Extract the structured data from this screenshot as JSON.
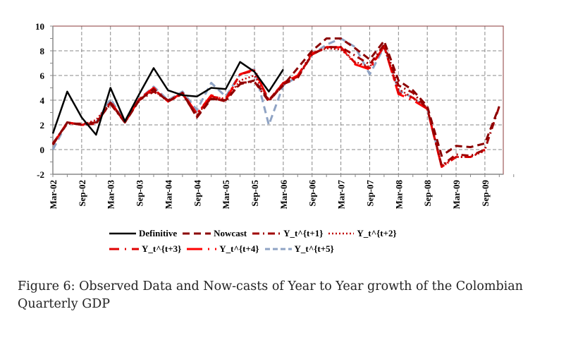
{
  "caption": "Figure 6:  Observed Data and Now-casts of Year to Year growth of the Colombian Quarterly GDP",
  "chart_data": {
    "type": "line",
    "title": "",
    "xlabel": "",
    "ylabel": "",
    "ylim": [
      -2,
      10
    ],
    "yticks": [
      -2,
      0,
      2,
      4,
      6,
      8,
      10
    ],
    "grid": true,
    "legend_position": "bottom",
    "x": [
      "Mar-02",
      "Jun-02",
      "Sep-02",
      "Dec-02",
      "Mar-03",
      "Jun-03",
      "Sep-03",
      "Dec-03",
      "Mar-04",
      "Jun-04",
      "Sep-04",
      "Dec-04",
      "Mar-05",
      "Jun-05",
      "Sep-05",
      "Dec-05",
      "Mar-06",
      "Jun-06",
      "Sep-06",
      "Dec-06",
      "Mar-07",
      "Jun-07",
      "Sep-07",
      "Dec-07",
      "Mar-08",
      "Jun-08",
      "Sep-08",
      "Dec-08",
      "Mar-09",
      "Jun-09",
      "Sep-09",
      "Dec-09"
    ],
    "xtick_labels": [
      "Mar-02",
      "Sep-02",
      "Mar-03",
      "Sep-03",
      "Mar-04",
      "Sep-04",
      "Mar-05",
      "Sep-05",
      "Mar-06",
      "Sep-06",
      "Mar-07",
      "Sep-07",
      "Mar-08",
      "Sep-08",
      "Mar-09",
      "Sep-09"
    ],
    "series": [
      {
        "name": "Definitive",
        "color": "#000000",
        "style": "solid",
        "values": [
          1.3,
          4.7,
          2.6,
          1.2,
          5.0,
          2.3,
          4.5,
          6.6,
          4.8,
          4.4,
          4.3,
          5.0,
          4.9,
          7.1,
          6.3,
          4.7,
          6.5,
          null,
          null,
          null,
          null,
          null,
          null,
          null,
          null,
          null,
          null,
          null,
          null,
          null,
          null,
          null
        ]
      },
      {
        "name": "Nowcast",
        "color": "#8b0000",
        "style": "dash",
        "values": [
          0.4,
          2.2,
          2.0,
          2.1,
          3.8,
          2.2,
          4.0,
          4.9,
          3.9,
          4.6,
          2.6,
          4.1,
          4.0,
          5.3,
          5.6,
          4.0,
          5.2,
          6.6,
          8.0,
          9.0,
          9.0,
          8.2,
          7.3,
          8.8,
          5.6,
          4.8,
          3.5,
          -0.5,
          0.3,
          0.2,
          0.5,
          3.5
        ]
      },
      {
        "name": "Y_t^{t+1}",
        "color": "#a00000",
        "style": "dashdot",
        "values": [
          0.5,
          2.1,
          2.1,
          2.2,
          3.7,
          2.2,
          4.0,
          4.7,
          4.0,
          4.5,
          2.7,
          4.2,
          3.9,
          5.4,
          5.5,
          3.9,
          5.3,
          5.8,
          7.7,
          8.3,
          8.3,
          7.6,
          6.9,
          8.5,
          5.2,
          4.6,
          3.3,
          -1.3,
          -0.4,
          -0.5,
          0.0,
          3.5
        ]
      },
      {
        "name": "Y_t^{t+2}",
        "color": "#c00000",
        "style": "dot",
        "values": [
          0.5,
          2.2,
          2.0,
          2.4,
          3.8,
          2.2,
          4.1,
          4.8,
          3.9,
          4.6,
          2.8,
          4.2,
          4.0,
          5.6,
          6.0,
          4.0,
          5.4,
          5.9,
          7.8,
          8.2,
          8.1,
          7.1,
          6.7,
          8.3,
          4.9,
          4.2,
          3.4,
          -1.3,
          -0.6,
          -0.6,
          -0.1,
          null
        ]
      },
      {
        "name": "Y_t^{t+3}",
        "color": "#e00000",
        "style": "dashdot",
        "values": [
          0.4,
          2.2,
          2.0,
          2.1,
          3.8,
          2.2,
          4.1,
          4.9,
          3.9,
          4.5,
          2.9,
          4.3,
          4.1,
          6.1,
          6.4,
          4.0,
          5.4,
          5.9,
          7.7,
          8.3,
          8.3,
          7.0,
          6.6,
          8.4,
          4.6,
          4.2,
          3.3,
          -1.4,
          -0.6,
          -0.6,
          0.0,
          null
        ]
      },
      {
        "name": "Y_t^{t+4}",
        "color": "#ff0000",
        "style": "solid-dash",
        "values": [
          0.4,
          2.2,
          2.0,
          2.1,
          3.9,
          2.2,
          4.1,
          5.0,
          3.9,
          4.6,
          2.9,
          4.4,
          4.0,
          6.1,
          6.5,
          3.9,
          5.4,
          6.0,
          7.8,
          8.2,
          8.3,
          6.9,
          6.5,
          8.4,
          4.5,
          4.0,
          3.3,
          -1.4,
          -0.6,
          null,
          null,
          null
        ]
      },
      {
        "name": "Y_t^{t+5}",
        "color": "#8fa3c4",
        "style": "dash",
        "values": [
          0.0,
          2.2,
          2.0,
          2.2,
          4.1,
          2.3,
          4.1,
          5.1,
          4.0,
          4.7,
          3.2,
          5.4,
          4.3,
          6.1,
          6.5,
          2.0,
          5.2,
          5.9,
          7.7,
          8.5,
          9.0,
          8.3,
          6.1,
          8.3,
          4.8,
          4.2,
          3.3,
          -1.3,
          null,
          null,
          null,
          null
        ]
      }
    ]
  },
  "legend": {
    "row1": [
      "Definitive",
      "Nowcast",
      "Y_t^{t+1}",
      "Y_t^{t+2}"
    ],
    "row2": [
      "Y_t^{t+3}",
      "Y_t^{t+4}",
      "Y_t^{t+5}"
    ]
  }
}
